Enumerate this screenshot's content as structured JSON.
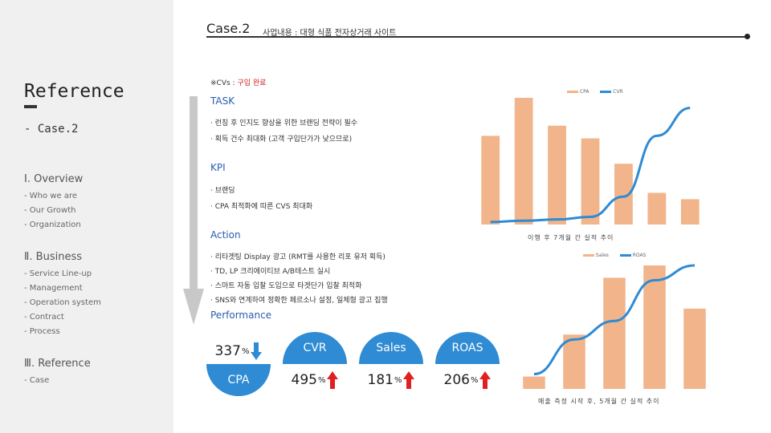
{
  "sidebar": {
    "title": "Reference",
    "case": "- Case.2",
    "sections": [
      {
        "title": "Ⅰ. Overview",
        "items": [
          "- Who we are",
          "- Our Growth",
          "- Organization"
        ]
      },
      {
        "title": "Ⅱ. Business",
        "items": [
          "- Service Line-up",
          "- Management",
          "- Operation system",
          "- Contract",
          "- Process"
        ]
      },
      {
        "title": "Ⅲ. Reference",
        "items": [
          "- Case"
        ]
      }
    ]
  },
  "header": {
    "title": "Case.2",
    "subtitle": "사업내용 : 대형 식품 전자상거래 사이트"
  },
  "cvs_note": {
    "prefix": "※CVs : ",
    "highlight": "구입 완료"
  },
  "task": {
    "label": "TASK",
    "bullets": [
      "· 런칭 후 인지도 향상을 위한 브랜딩 전략이 필수",
      "· 획득 건수 최대화 (고객 구입단가가 낮으므로)"
    ]
  },
  "kpi": {
    "label": "KPI",
    "bullets": [
      "· 브랜딩",
      "· CPA 최적화에 따른 CVS 최대화"
    ]
  },
  "action": {
    "label": "Action",
    "bullets": [
      "· 리타겟팅 Display 광고 (RMT를 사용한 리포 유저 획득)",
      "· TD, LP 크리에이티브 A/B테스트 실시",
      "· 스마트 자동 입찰 도입으로 타겟단가 입찰 최적화",
      "· SNS와 연계하여 정확한 페르소나 설정, 일체형 광고 집행"
    ]
  },
  "performance": {
    "label": "Performance",
    "items": [
      {
        "value": "337",
        "unit": "%",
        "name": "CPA",
        "direction": "down"
      },
      {
        "value": "495",
        "unit": "%",
        "name": "CVR",
        "direction": "up"
      },
      {
        "value": "181",
        "unit": "%",
        "name": "Sales",
        "direction": "up"
      },
      {
        "value": "206",
        "unit": "%",
        "name": "ROAS",
        "direction": "up"
      }
    ]
  },
  "colors": {
    "bar": "#f2b48a",
    "line": "#2e8bd4",
    "up_arrow": "#e02020",
    "down_arrow": "#2e8bd4",
    "header": "#333333"
  },
  "chart_data": [
    {
      "type": "bar",
      "title": "",
      "caption": "이행 후 7개월 간 실적 추이",
      "legend": [
        "CPA",
        "CVR"
      ],
      "legend_position": "top-right",
      "series": [
        {
          "name": "CPA",
          "type": "bar",
          "values": [
            70,
            100,
            78,
            68,
            48,
            25,
            20
          ]
        },
        {
          "name": "CVR",
          "type": "line",
          "values": [
            2,
            3,
            4,
            6,
            22,
            70,
            92
          ]
        }
      ],
      "ylim": [
        0,
        100
      ],
      "grid": false
    },
    {
      "type": "bar",
      "title": "",
      "caption": "매출 측정 시작 후, 5개월 간 실적 추이",
      "legend": [
        "Sales",
        "ROAS"
      ],
      "legend_position": "top-right",
      "series": [
        {
          "name": "Sales",
          "type": "bar",
          "values": [
            10,
            44,
            90,
            100,
            65
          ]
        },
        {
          "name": "ROAS",
          "type": "line",
          "values": [
            12,
            40,
            55,
            88,
            100
          ]
        }
      ],
      "ylim": [
        0,
        100
      ],
      "grid": false
    }
  ]
}
